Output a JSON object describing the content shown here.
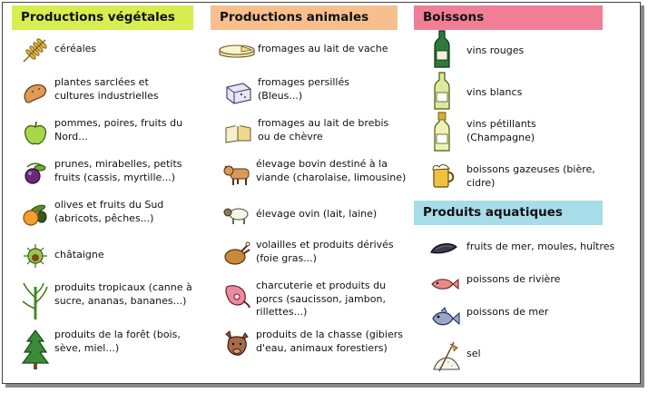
{
  "sections": {
    "vegetales": {
      "title": "Productions végétales",
      "color": "#d6ee50",
      "items": [
        {
          "label": "céréales",
          "icon": "wheat-icon"
        },
        {
          "label": "plantes sarclées et\ncultures industrielles",
          "icon": "potato-icon"
        },
        {
          "label": "pommes, poires, fruits du\nNord...",
          "icon": "apple-icon"
        },
        {
          "label": "prunes, mirabelles, petits\nfruits (cassis, myrtille...)",
          "icon": "plum-icon"
        },
        {
          "label": "olives et fruits du Sud\n(abricots, pêches...)",
          "icon": "olive-apricot-icon"
        },
        {
          "label": "châtaigne",
          "icon": "chestnut-icon"
        },
        {
          "label": "produits tropicaux (canne à\nsucre, ananas, bananes...)",
          "icon": "sugarcane-icon"
        },
        {
          "label": "produits de la forêt (bois,\nsève, miel...)",
          "icon": "fir-tree-icon"
        }
      ]
    },
    "animales": {
      "title": "Productions animales",
      "color": "#f7bf8d",
      "items": [
        {
          "label": "fromages au lait de vache",
          "icon": "cheese-wheel-icon"
        },
        {
          "label": "fromages persillés\n(Bleus...)",
          "icon": "blue-cheese-icon"
        },
        {
          "label": "fromages au lait de brebis\nou de chèvre",
          "icon": "goat-cheese-icon"
        },
        {
          "label": "élevage bovin destiné à la\nviande (charolaise, limousine)",
          "icon": "cow-icon"
        },
        {
          "label": "élevage ovin (lait, laine)",
          "icon": "sheep-icon"
        },
        {
          "label": "volailles et produits dérivés\n(foie gras...)",
          "icon": "roast-chicken-icon"
        },
        {
          "label": "charcuterie et produits du\nporcs (saucisson, jambon,\nrillettes...)",
          "icon": "ham-icon"
        },
        {
          "label": "produits de la chasse (gibiers\nd'eau, animaux forestiers)",
          "icon": "boar-icon"
        }
      ]
    },
    "boissons": {
      "title": "Boissons",
      "color": "#f07f96",
      "items": [
        {
          "label": "vins rouges",
          "icon": "red-wine-bottle-icon"
        },
        {
          "label": "vins blancs",
          "icon": "white-wine-bottle-icon"
        },
        {
          "label": "vins pétillants\n(Champagne)",
          "icon": "champagne-bottle-icon"
        },
        {
          "label": "boissons gazeuses (bière,\ncidre)",
          "icon": "beer-mug-icon"
        }
      ]
    },
    "aquatiques": {
      "title": "Produits aquatiques",
      "color": "#a7dde9",
      "items": [
        {
          "label": "fruits de mer, moules, huîtres",
          "icon": "mussel-icon"
        },
        {
          "label": "poissons de rivière",
          "icon": "river-fish-icon"
        },
        {
          "label": "poissons de mer",
          "icon": "sea-fish-icon"
        },
        {
          "label": "sel",
          "icon": "salt-icon"
        }
      ]
    }
  }
}
